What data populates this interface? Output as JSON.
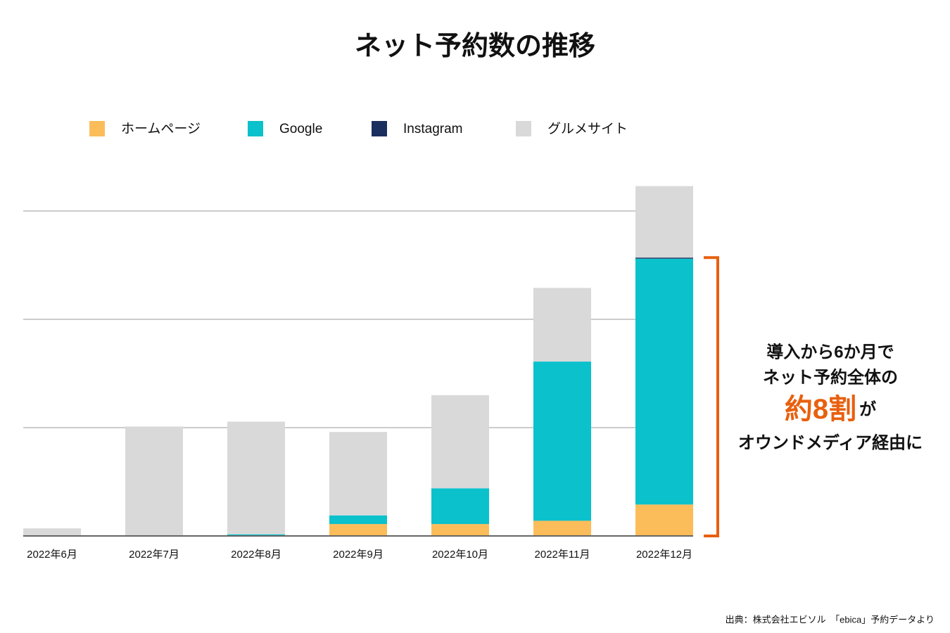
{
  "chart_data": {
    "type": "stacked_bar",
    "title": "ネット予約数の推移",
    "categories": [
      "2022年6月",
      "2022年7月",
      "2022年8月",
      "2022年9月",
      "2022年10月",
      "2022年11月",
      "2022年12月"
    ],
    "series": [
      {
        "name": "ホームページ",
        "color": "#fbbd5a",
        "values": [
          0,
          0,
          0,
          1.1,
          1.1,
          1.4,
          2.9
        ]
      },
      {
        "name": "Google",
        "color": "#0bc1cb",
        "values": [
          0,
          0,
          0.15,
          0.8,
          3.3,
          14.7,
          22.7
        ]
      },
      {
        "name": "Instagram",
        "color": "#1b2f5e",
        "values": [
          0,
          0,
          0,
          0,
          0,
          0,
          0.1
        ]
      },
      {
        "name": "グルメサイト",
        "color": "#d9d9d9",
        "values": [
          0.7,
          10.1,
          10.4,
          7.7,
          8.6,
          6.8,
          6.6
        ]
      }
    ],
    "ylim": [
      0,
      35
    ],
    "yticks": [
      0,
      10,
      20,
      30
    ],
    "ytick_labels": false,
    "grid": true,
    "annotation": {
      "lines": [
        "導入から6か月で",
        "ネット予約全体の"
      ],
      "highlight": "約8割",
      "highlight_suffix": "が",
      "last_line": "オウンドメディア経由に",
      "color": "#e8600f"
    },
    "source": "出典：株式会社エビソル　「ebica」予約データより"
  }
}
